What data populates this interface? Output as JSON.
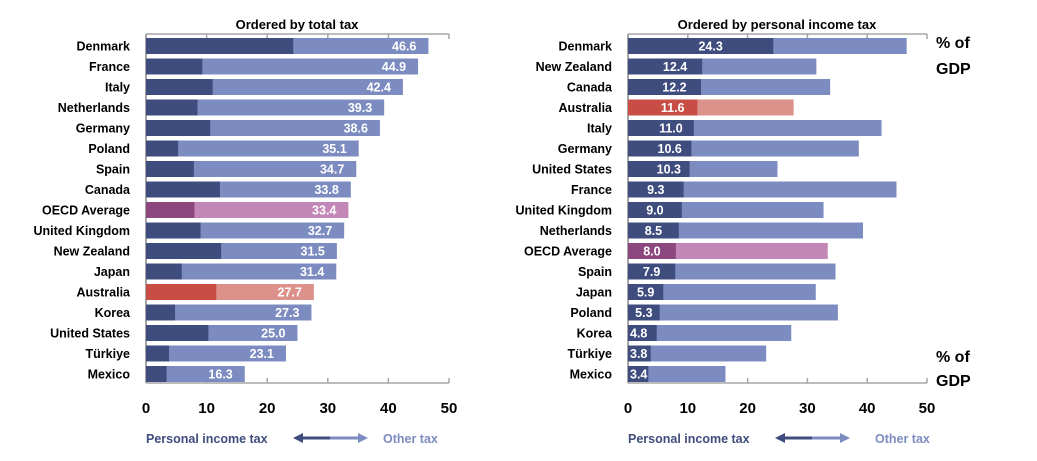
{
  "colors": {
    "pit": "#3f4d7e",
    "other": "#7d8cc0",
    "oecd_pit": "#8b477e",
    "oecd_other": "#c387b7",
    "australia_pit": "#c74d45",
    "australia_other": "#dd918b",
    "axis": "#a6a6a6"
  },
  "chart_data": [
    {
      "type": "bar",
      "orientation": "horizontal",
      "stacked": true,
      "title": "Ordered by total tax",
      "label_shown": "total",
      "xlim": [
        0,
        50
      ],
      "xticks": [
        0,
        10,
        20,
        30,
        40,
        50
      ],
      "legend": {
        "placement": "bottom",
        "left": "Personal income tax",
        "right": "Other tax"
      },
      "rows": [
        {
          "country": "Denmark",
          "pit": 24.3,
          "total": 46.6,
          "highlight": ""
        },
        {
          "country": "France",
          "pit": 9.3,
          "total": 44.9,
          "highlight": ""
        },
        {
          "country": "Italy",
          "pit": 11.0,
          "total": 42.4,
          "highlight": ""
        },
        {
          "country": "Netherlands",
          "pit": 8.5,
          "total": 39.3,
          "highlight": ""
        },
        {
          "country": "Germany",
          "pit": 10.6,
          "total": 38.6,
          "highlight": ""
        },
        {
          "country": "Poland",
          "pit": 5.3,
          "total": 35.1,
          "highlight": ""
        },
        {
          "country": "Spain",
          "pit": 7.9,
          "total": 34.7,
          "highlight": ""
        },
        {
          "country": "Canada",
          "pit": 12.2,
          "total": 33.8,
          "highlight": ""
        },
        {
          "country": "OECD Average",
          "pit": 8.0,
          "total": 33.4,
          "highlight": "oecd"
        },
        {
          "country": "United Kingdom",
          "pit": 9.0,
          "total": 32.7,
          "highlight": ""
        },
        {
          "country": "New Zealand",
          "pit": 12.4,
          "total": 31.5,
          "highlight": ""
        },
        {
          "country": "Japan",
          "pit": 5.9,
          "total": 31.4,
          "highlight": ""
        },
        {
          "country": "Australia",
          "pit": 11.6,
          "total": 27.7,
          "highlight": "australia"
        },
        {
          "country": "Korea",
          "pit": 4.8,
          "total": 27.3,
          "highlight": ""
        },
        {
          "country": "United States",
          "pit": 10.3,
          "total": 25.0,
          "highlight": ""
        },
        {
          "country": "Türkiye",
          "pit": 3.8,
          "total": 23.1,
          "highlight": ""
        },
        {
          "country": "Mexico",
          "pit": 3.4,
          "total": 16.3,
          "highlight": ""
        }
      ]
    },
    {
      "type": "bar",
      "orientation": "horizontal",
      "stacked": true,
      "title": "Ordered by personal income tax",
      "label_shown": "pit",
      "unit_label": [
        "% of",
        "GDP"
      ],
      "xlim": [
        0,
        50
      ],
      "xticks": [
        0,
        10,
        20,
        30,
        40,
        50
      ],
      "legend": {
        "placement": "bottom",
        "left": "Personal income tax",
        "right": "Other tax"
      },
      "rows": [
        {
          "country": "Denmark",
          "pit": 24.3,
          "total": 46.6,
          "highlight": ""
        },
        {
          "country": "New Zealand",
          "pit": 12.4,
          "total": 31.5,
          "highlight": ""
        },
        {
          "country": "Canada",
          "pit": 12.2,
          "total": 33.8,
          "highlight": ""
        },
        {
          "country": "Australia",
          "pit": 11.6,
          "total": 27.7,
          "highlight": "australia"
        },
        {
          "country": "Italy",
          "pit": 11.0,
          "total": 42.4,
          "highlight": ""
        },
        {
          "country": "Germany",
          "pit": 10.6,
          "total": 38.6,
          "highlight": ""
        },
        {
          "country": "United States",
          "pit": 10.3,
          "total": 25.0,
          "highlight": ""
        },
        {
          "country": "France",
          "pit": 9.3,
          "total": 44.9,
          "highlight": ""
        },
        {
          "country": "United Kingdom",
          "pit": 9.0,
          "total": 32.7,
          "highlight": ""
        },
        {
          "country": "Netherlands",
          "pit": 8.5,
          "total": 39.3,
          "highlight": ""
        },
        {
          "country": "OECD Average",
          "pit": 8.0,
          "total": 33.4,
          "highlight": "oecd"
        },
        {
          "country": "Spain",
          "pit": 7.9,
          "total": 34.7,
          "highlight": ""
        },
        {
          "country": "Japan",
          "pit": 5.9,
          "total": 31.4,
          "highlight": ""
        },
        {
          "country": "Poland",
          "pit": 5.3,
          "total": 35.1,
          "highlight": ""
        },
        {
          "country": "Korea",
          "pit": 4.8,
          "total": 27.3,
          "highlight": ""
        },
        {
          "country": "Türkiye",
          "pit": 3.8,
          "total": 23.1,
          "highlight": ""
        },
        {
          "country": "Mexico",
          "pit": 3.4,
          "total": 16.3,
          "highlight": ""
        }
      ]
    }
  ]
}
